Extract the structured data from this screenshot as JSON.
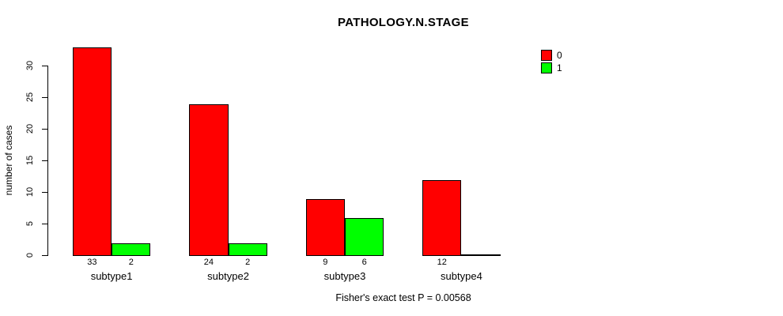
{
  "title": "PATHOLOGY.N.STAGE",
  "caption": "Fisher's exact test P = 0.00568",
  "y_axis": {
    "label": "number of cases",
    "ticks": [
      0,
      5,
      10,
      15,
      20,
      25,
      30
    ]
  },
  "legend": [
    {
      "label": "0",
      "color": "#ff0000"
    },
    {
      "label": "1",
      "color": "#00ff00"
    }
  ],
  "colors": {
    "series_0": "#ff0000",
    "series_1": "#00ff00",
    "axis": "#000000",
    "background": "#ffffff"
  },
  "chart_data": {
    "type": "bar",
    "title": "PATHOLOGY.N.STAGE",
    "xlabel": "",
    "ylabel": "number of cases",
    "categories": [
      "subtype1",
      "subtype2",
      "subtype3",
      "subtype4"
    ],
    "series": [
      {
        "name": "0",
        "color": "#ff0000",
        "values": [
          33,
          24,
          9,
          12
        ]
      },
      {
        "name": "1",
        "color": "#00ff00",
        "values": [
          2,
          2,
          6,
          0
        ]
      }
    ],
    "bar_value_labels": [
      [
        "33",
        "2"
      ],
      [
        "24",
        "2"
      ],
      [
        "9",
        "6"
      ],
      [
        "12",
        ""
      ]
    ],
    "ylim": [
      0,
      33
    ],
    "ytick_interval": 5,
    "grid": false,
    "legend_position": "top-right",
    "subtitle": "Fisher's exact test P = 0.00568"
  }
}
